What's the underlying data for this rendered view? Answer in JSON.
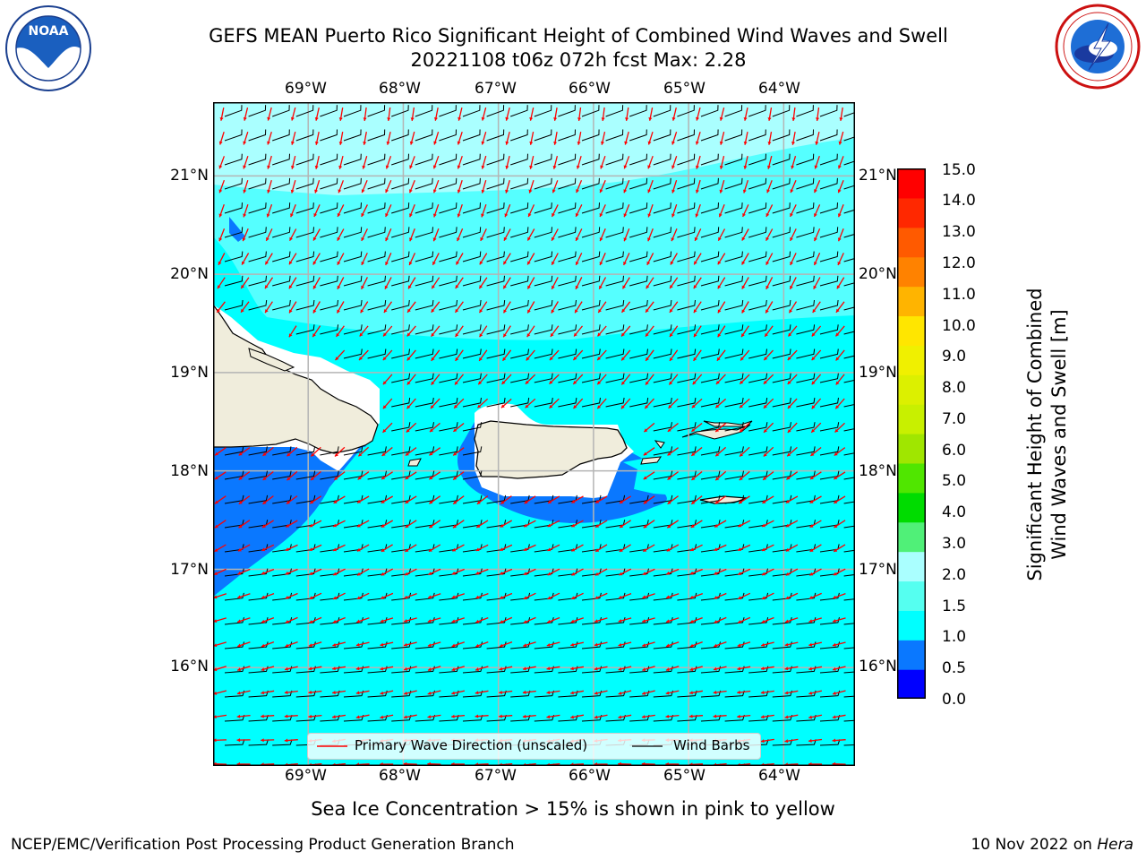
{
  "title": {
    "line1": "GEFS MEAN Puerto Rico Significant Height of Combined Wind Waves and Swell",
    "line2": "20221108 t06z 072h fcst   Max: 2.28"
  },
  "logos": {
    "noaa_text": "NOAA",
    "noaa_ring": "NATIONAL OCEANIC AND ATMOSPHERIC ADMINISTRATION · U.S. DEPARTMENT OF COMMERCE",
    "nws_ring": "NATIONAL WEATHER SERVICE"
  },
  "map": {
    "lon_ticks": [
      "69°W",
      "68°W",
      "67°W",
      "66°W",
      "65°W",
      "64°W"
    ],
    "lat_ticks": [
      "21°N",
      "20°N",
      "19°N",
      "18°N",
      "17°N",
      "16°N"
    ],
    "lon_values": [
      -69,
      -68,
      -67,
      -66,
      -65,
      -64
    ],
    "lat_values": [
      21,
      20,
      19,
      18,
      17,
      16
    ],
    "extent": {
      "lon_min": -70.0,
      "lon_max": -63.25,
      "lat_min": 15.0,
      "lat_max": 21.75
    },
    "ocean_color": "#00ffff",
    "land_color": "#f0eddc",
    "grid_color": "#b4b4b4",
    "legend": {
      "wave_label": "Primary Wave Direction (unscaled)",
      "barb_label": "Wind Barbs",
      "wave_color": "#ff0000",
      "barb_color": "#000000"
    }
  },
  "colorbar": {
    "label_line1": "Significant Height of Combined",
    "label_line2": "Wind Waves and Swell [m]",
    "ticks": [
      "15.0",
      "14.0",
      "13.0",
      "12.0",
      "11.0",
      "10.0",
      "9.0",
      "8.0",
      "7.0",
      "6.0",
      "5.0",
      "4.0",
      "3.0",
      "2.0",
      "1.5",
      "1.0",
      "0.5",
      "0.0"
    ],
    "colors_bottom_to_top": [
      "#0000ff",
      "#0a78ff",
      "#00ffff",
      "#55fff0",
      "#aaffff",
      "#50f078",
      "#00dc00",
      "#50e600",
      "#a0e600",
      "#c8f000",
      "#dcf000",
      "#f0f000",
      "#ffe600",
      "#ffb400",
      "#ff8200",
      "#ff5a00",
      "#ff2800",
      "#ff0000"
    ]
  },
  "caption": "Sea Ice Concentration > 15% is shown in pink to yellow",
  "footer": {
    "left": "NCEP/EMC/Verification Post Processing Product Generation Branch",
    "date": "10 Nov 2022 on ",
    "host": "Hera"
  }
}
